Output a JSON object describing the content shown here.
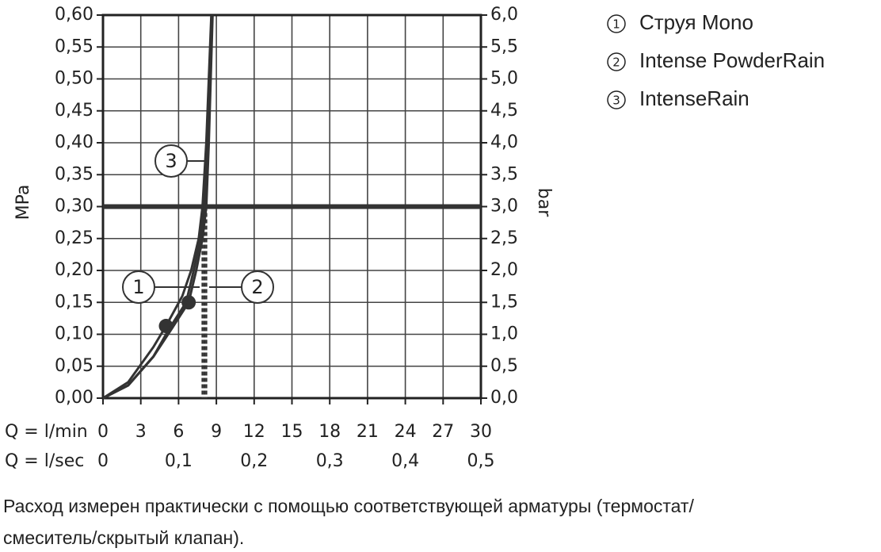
{
  "chart_data": {
    "type": "line",
    "y_label": "MPa",
    "y2_label": "bar",
    "x_label": "Q = l/min",
    "x2_label": "Q = l/sec",
    "xlim": [
      0,
      30
    ],
    "xticks": [
      0,
      3,
      6,
      9,
      12,
      15,
      18,
      21,
      24,
      27,
      30
    ],
    "x2lim": [
      0,
      0.5
    ],
    "x2ticks": [
      0,
      {
        "value": 0.1,
        "label": "0,1"
      },
      {
        "value": 0.2,
        "label": "0,2"
      },
      {
        "value": 0.3,
        "label": "0,3"
      },
      {
        "value": 0.4,
        "label": "0,4"
      },
      {
        "value": 0.5,
        "label": "0,5"
      }
    ],
    "ylim": [
      0,
      0.6
    ],
    "yticks": [
      {
        "value": 0,
        "label": "0,00"
      },
      {
        "value": 0.05,
        "label": "0,05"
      },
      {
        "value": 0.1,
        "label": "0,10"
      },
      {
        "value": 0.15,
        "label": "0,15"
      },
      {
        "value": 0.2,
        "label": "0,20"
      },
      {
        "value": 0.25,
        "label": "0,25"
      },
      {
        "value": 0.3,
        "label": "0,30"
      },
      {
        "value": 0.35,
        "label": "0,35"
      },
      {
        "value": 0.4,
        "label": "0,40"
      },
      {
        "value": 0.45,
        "label": "0,45"
      },
      {
        "value": 0.5,
        "label": "0,50"
      },
      {
        "value": 0.55,
        "label": "0,55"
      },
      {
        "value": 0.6,
        "label": "0,60"
      }
    ],
    "y2lim": [
      0,
      6
    ],
    "y2ticks": [
      {
        "value": 0,
        "label": "0,0"
      },
      {
        "value": 0.5,
        "label": "0,5"
      },
      {
        "value": 1,
        "label": "1,0"
      },
      {
        "value": 1.5,
        "label": "1,5"
      },
      {
        "value": 2,
        "label": "2,0"
      },
      {
        "value": 2.5,
        "label": "2,5"
      },
      {
        "value": 3,
        "label": "3,0"
      },
      {
        "value": 3.5,
        "label": "3,5"
      },
      {
        "value": 4,
        "label": "4,0"
      },
      {
        "value": 4.5,
        "label": "4,5"
      },
      {
        "value": 5,
        "label": "5,0"
      },
      {
        "value": 5.5,
        "label": "5,5"
      },
      {
        "value": 6,
        "label": "6,0"
      }
    ],
    "grid": true,
    "reference_line": 0.3,
    "color": "#333333",
    "series": [
      {
        "name": "Струя Mono",
        "label": "1",
        "color": "#333333",
        "x": [
          0,
          2,
          4,
          5,
          6.3,
          7,
          7.6,
          7.9,
          8.2,
          8.4,
          8.6
        ],
        "values": [
          0,
          0.025,
          0.08,
          0.113,
          0.16,
          0.2,
          0.25,
          0.3,
          0.4,
          0.5,
          0.6
        ],
        "marker": {
          "x": 5,
          "y": 0.113
        },
        "rated_flow": 7.9
      },
      {
        "name": "Intense PowderRain",
        "label": "2",
        "color": "#333333",
        "x": [
          0,
          2,
          4,
          5.5,
          6.8,
          7.4,
          7.9,
          8.2,
          8.4,
          8.55,
          8.7
        ],
        "values": [
          0,
          0.02,
          0.065,
          0.11,
          0.15,
          0.2,
          0.25,
          0.3,
          0.4,
          0.5,
          0.6
        ],
        "marker": {
          "x": 6.8,
          "y": 0.15
        },
        "rated_flow": 8.2
      },
      {
        "name": "IntenseRain",
        "label": "3",
        "color": "#333333",
        "x": [
          0,
          2,
          4,
          5.3,
          6.6,
          7.2,
          7.75,
          8.05,
          8.3,
          8.5,
          8.65
        ],
        "values": [
          0,
          0.02,
          0.065,
          0.11,
          0.15,
          0.2,
          0.25,
          0.3,
          0.4,
          0.5,
          0.6
        ],
        "rated_flow": 8.05
      }
    ],
    "note": [
      "Расход измерен практически с помощью соответствующей арматуры (термостат/",
      "смеситель/скрытый клапан)."
    ]
  }
}
